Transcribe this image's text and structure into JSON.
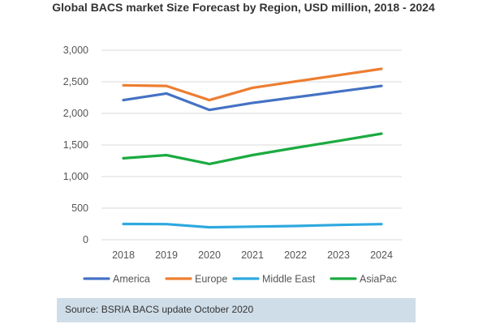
{
  "chart_data": {
    "type": "line",
    "title": "Global BACS market Size Forecast by Region, USD million, 2018 - 2024",
    "x": [
      "2018",
      "2019",
      "2020",
      "2021",
      "2022",
      "2023",
      "2024"
    ],
    "ylim": [
      0,
      3000
    ],
    "yticks": [
      0,
      500,
      1000,
      1500,
      2000,
      2500,
      3000
    ],
    "ytick_labels": [
      "0",
      "500",
      "1,000",
      "1,500",
      "2,000",
      "2,500",
      "3,000"
    ],
    "grid": true,
    "legend_position": "bottom",
    "series": [
      {
        "name": "America",
        "color": "#4472c4",
        "values": [
          2210,
          2315,
          2055,
          2165,
          2255,
          2345,
          2435
        ]
      },
      {
        "name": "Europe",
        "color": "#ed7d31",
        "values": [
          2445,
          2435,
          2210,
          2405,
          2505,
          2605,
          2705
        ]
      },
      {
        "name": "Middle East",
        "color": "#2ea9df",
        "values": [
          250,
          248,
          198,
          208,
          218,
          235,
          248
        ]
      },
      {
        "name": "AsiaPac",
        "color": "#1aab40",
        "values": [
          1290,
          1340,
          1200,
          1340,
          1455,
          1565,
          1680
        ]
      }
    ]
  },
  "source_note": "Source: BSRIA BACS update October 2020"
}
